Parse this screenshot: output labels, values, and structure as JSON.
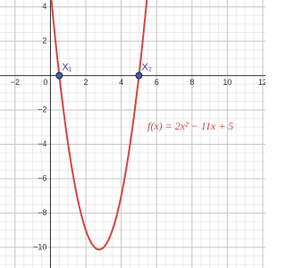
{
  "chart_data": {
    "type": "function",
    "function_label": "f(x) = 2x² − 11x + 5",
    "coefficients": [
      2,
      -11,
      5
    ],
    "color": "#d64545",
    "points": [
      {
        "label": "X₁",
        "x": 0.5,
        "y": 0
      },
      {
        "label": "X₂",
        "x": 5,
        "y": 0
      }
    ],
    "point_color": "#3d5fa8",
    "xlim": [
      -2.85,
      12.15
    ],
    "ylim": [
      -11.2,
      4.4
    ],
    "xticks": [
      {
        "value": -2,
        "label": "−2"
      },
      0,
      2,
      4,
      6,
      8,
      10,
      12
    ],
    "yticks": [
      {
        "value": -10,
        "label": "−10"
      },
      {
        "value": -8,
        "label": "−8"
      },
      {
        "value": -6,
        "label": "−6"
      },
      {
        "value": -4,
        "label": "−4"
      },
      {
        "value": -2,
        "label": "−2"
      },
      2,
      4
    ],
    "grid": true,
    "minor_step": 0.5
  }
}
